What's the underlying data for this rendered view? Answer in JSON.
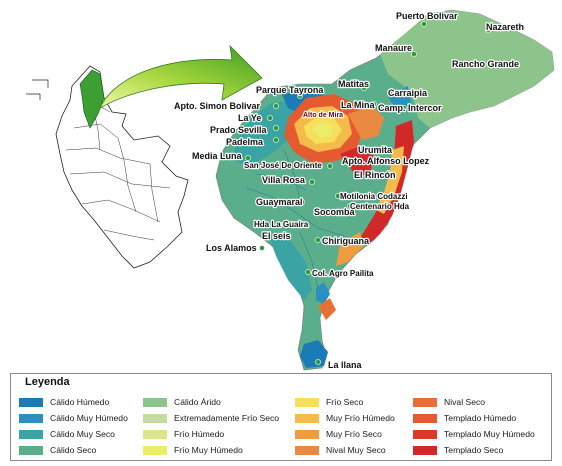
{
  "places": [
    {
      "name": "Puerto Bolivar",
      "size": "s9"
    },
    {
      "name": "Nazareth",
      "size": "s9"
    },
    {
      "name": "Manaure",
      "size": "s9"
    },
    {
      "name": "Rancho Grande",
      "size": "s9"
    },
    {
      "name": "Matitas",
      "size": "s9"
    },
    {
      "name": "Carraipia",
      "size": "s9"
    },
    {
      "name": "Parque Tayrona",
      "size": "s9"
    },
    {
      "name": "La Mina",
      "size": "s9"
    },
    {
      "name": "Camp. Intercor",
      "size": "s9"
    },
    {
      "name": "Apto. Simon Bolivar",
      "size": "s9"
    },
    {
      "name": "La Ye",
      "size": "s9"
    },
    {
      "name": "Alto de Mira",
      "size": "s7",
      "red": true
    },
    {
      "name": "Prado Sevilla",
      "size": "s9"
    },
    {
      "name": "Padelma",
      "size": "s9"
    },
    {
      "name": "Urumita",
      "size": "s9"
    },
    {
      "name": "Media Luna",
      "size": "s9"
    },
    {
      "name": "San José De Oriente",
      "size": "s8"
    },
    {
      "name": "Apto. Alfonso Lopez",
      "size": "s9"
    },
    {
      "name": "El Rincón",
      "size": "s9"
    },
    {
      "name": "Villa Rosa",
      "size": "s9"
    },
    {
      "name": "Motilonia Codazzi",
      "size": "s8"
    },
    {
      "name": "Centenario Hda",
      "size": "s8"
    },
    {
      "name": "Guaymaral",
      "size": "s9"
    },
    {
      "name": "Socomba",
      "size": "s9"
    },
    {
      "name": "Hda La Guaira",
      "size": "s8"
    },
    {
      "name": "El seis",
      "size": "s9"
    },
    {
      "name": "Chiriguana",
      "size": "s9"
    },
    {
      "name": "Los Alamos",
      "size": "s9"
    },
    {
      "name": "Col. Agro Pailita",
      "size": "s8"
    },
    {
      "name": "La llana",
      "size": "s9"
    }
  ],
  "legend": {
    "title": "Leyenda",
    "items": [
      {
        "label": "Cálido Húmedo",
        "color": "#1b7bb6"
      },
      {
        "label": "Cálido Muy Húmedo",
        "color": "#2a90c0"
      },
      {
        "label": "Cálido Muy Seco",
        "color": "#3aa3a3"
      },
      {
        "label": "Cálido Seco",
        "color": "#5aae8c"
      },
      {
        "label": "Cálido Árido",
        "color": "#8cc48c"
      },
      {
        "label": "Extremadamente Frío Seco",
        "color": "#c3dca2"
      },
      {
        "label": "Frío Húmedo",
        "color": "#dbe68a"
      },
      {
        "label": "Frío Muy Húmedo",
        "color": "#eaec6a"
      },
      {
        "label": "Frío Seco",
        "color": "#f6df5c"
      },
      {
        "label": "Muy Frío Húmedo",
        "color": "#f3bb4a"
      },
      {
        "label": "Muy Frío Seco",
        "color": "#ef9b3e"
      },
      {
        "label": "Nival Muy Seco",
        "color": "#ea8a40"
      },
      {
        "label": "Nival Seco",
        "color": "#e76f36"
      },
      {
        "label": "Templado Húmedo",
        "color": "#e65a30"
      },
      {
        "label": "Templado Muy Húmedo",
        "color": "#db3a2a"
      },
      {
        "label": "Templado Seco",
        "color": "#d22828"
      }
    ]
  }
}
